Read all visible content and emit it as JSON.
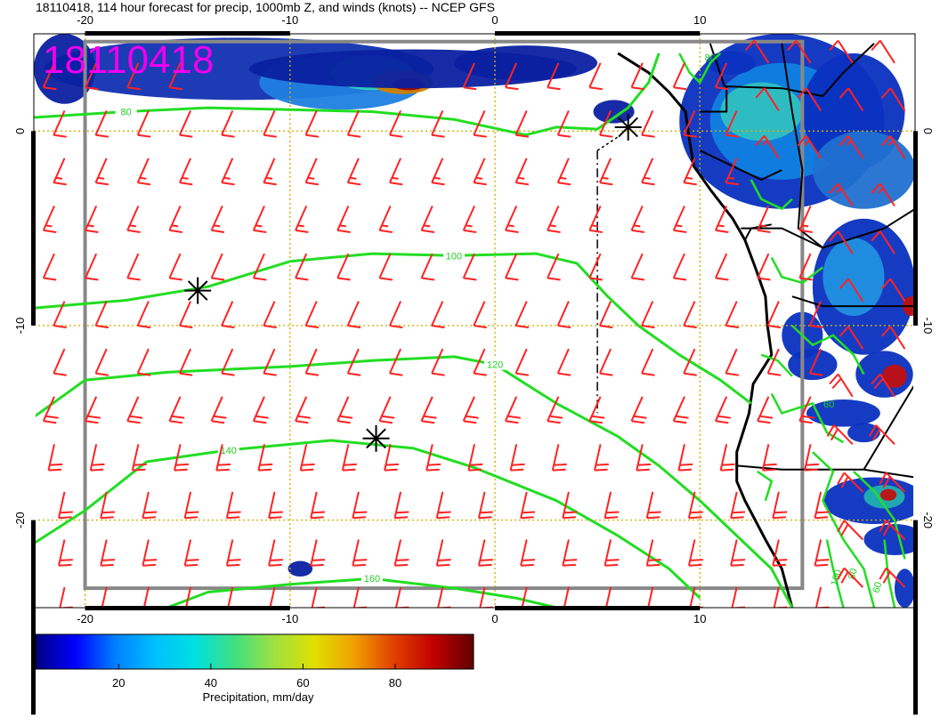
{
  "title": "18110418, 114 hour forecast for precip, 1000mb Z, and winds (knots) -- NCEP GFS",
  "stamp": "18110418",
  "map": {
    "lon_range": [
      -22.5,
      20.5
    ],
    "lat_range": [
      -24.5,
      5
    ],
    "lon_ticks": [
      "-20",
      "-10",
      "0",
      "10"
    ],
    "lat_ticks": [
      "0",
      "-10",
      "-20"
    ],
    "gridlines": "dotted",
    "gridline_color": "#d4b000",
    "frame_color": "#888888"
  },
  "contours": {
    "variable": "1000mb geopotential height",
    "color": "#22dd22",
    "levels": [
      {
        "label": "80",
        "points": [
          [
            -22.5,
            0.7
          ],
          [
            -18,
            1
          ],
          [
            -14,
            1.2
          ],
          [
            -10,
            1.1
          ],
          [
            -6,
            1.0
          ],
          [
            -2,
            0.6
          ],
          [
            1.5,
            -0.2
          ],
          [
            3,
            0.2
          ],
          [
            5,
            0.1
          ],
          [
            6.5,
            1.2
          ],
          [
            7.5,
            2.5
          ],
          [
            8,
            4
          ]
        ]
      },
      {
        "label": "100",
        "points": [
          [
            -22.5,
            -9.1
          ],
          [
            -18,
            -8.7
          ],
          [
            -14,
            -8.0
          ],
          [
            -10,
            -6.7
          ],
          [
            -6,
            -6.3
          ],
          [
            -2,
            -6.4
          ],
          [
            2,
            -6.3
          ],
          [
            4,
            -6.8
          ],
          [
            5.5,
            -8.5
          ],
          [
            7,
            -10
          ],
          [
            9,
            -11.5
          ],
          [
            11,
            -12.8
          ],
          [
            12.5,
            -14
          ]
        ]
      },
      {
        "label": "120",
        "points": [
          [
            -22.5,
            -14.7
          ],
          [
            -20,
            -12.8
          ],
          [
            -16,
            -12.4
          ],
          [
            -10,
            -12.1
          ],
          [
            -6,
            -11.8
          ],
          [
            -2,
            -11.6
          ],
          [
            0,
            -12.0
          ],
          [
            3,
            -14.0
          ],
          [
            6,
            -15.7
          ],
          [
            8,
            -17.2
          ],
          [
            10,
            -19.0
          ],
          [
            12,
            -21.0
          ],
          [
            13.5,
            -22.5
          ],
          [
            14.5,
            -24.5
          ]
        ]
      },
      {
        "label": "140",
        "points": [
          [
            -22.5,
            -21.2
          ],
          [
            -20,
            -19.5
          ],
          [
            -17,
            -17.0
          ],
          [
            -13,
            -16.4
          ],
          [
            -8,
            -15.9
          ],
          [
            -4,
            -16.3
          ],
          [
            -1,
            -17.3
          ],
          [
            3,
            -19.0
          ],
          [
            6,
            -20.8
          ],
          [
            8.5,
            -22.5
          ],
          [
            10,
            -24.0
          ]
        ]
      },
      {
        "label": "160",
        "points": [
          [
            -16,
            -24.5
          ],
          [
            -14,
            -23.7
          ],
          [
            -10,
            -23.3
          ],
          [
            -6,
            -23.0
          ],
          [
            -2,
            -23.5
          ],
          [
            1,
            -24.0
          ],
          [
            3,
            -24.5
          ]
        ]
      }
    ]
  },
  "coast": [
    [
      6,
      4
    ],
    [
      7.5,
      3
    ],
    [
      8.5,
      2
    ],
    [
      9.3,
      1
    ],
    [
      9.5,
      -0.5
    ],
    [
      9.7,
      -1.8
    ],
    [
      10.5,
      -3
    ],
    [
      11.6,
      -4.5
    ],
    [
      12.2,
      -5.6
    ],
    [
      12.7,
      -7
    ],
    [
      13.2,
      -8.5
    ],
    [
      13.3,
      -10
    ],
    [
      13.5,
      -11.5
    ],
    [
      12.6,
      -13
    ],
    [
      12.4,
      -14.5
    ],
    [
      11.8,
      -16.5
    ],
    [
      11.8,
      -18
    ],
    [
      12.2,
      -19
    ],
    [
      13.2,
      -21
    ],
    [
      14,
      -22.5
    ],
    [
      14.5,
      -24.5
    ]
  ],
  "storms": [
    [
      -14.5,
      -8.2
    ],
    [
      -5.8,
      -15.8
    ],
    [
      6.5,
      0.2
    ]
  ],
  "wind_barbs": {
    "color": "#ff2222",
    "units": "knots",
    "direction": "southeasterly trade winds"
  },
  "colorbar": {
    "label": "Precipitation, mm/day",
    "ticks": [
      "20",
      "40",
      "60",
      "80"
    ],
    "range": [
      2,
      97
    ],
    "colors": [
      "#000080",
      "#0000ff",
      "#0080ff",
      "#00c0ff",
      "#00e0e0",
      "#40e080",
      "#a0e040",
      "#e0e000",
      "#f0a000",
      "#e04000",
      "#c00000",
      "#600000"
    ]
  }
}
